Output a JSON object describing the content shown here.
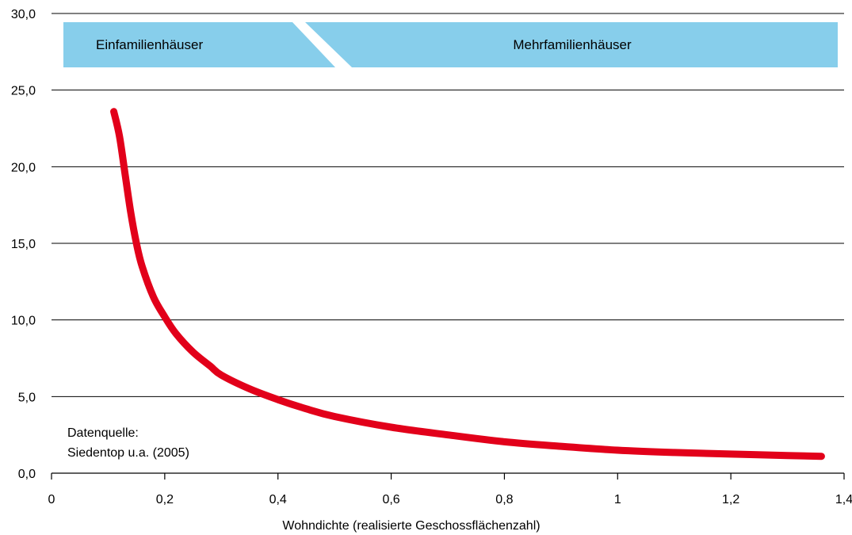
{
  "chart_data": {
    "type": "line",
    "title": "",
    "xlabel": "Wohndichte (realisierte Geschossflächenzahl)",
    "ylabel": "",
    "xlim": [
      0,
      1.4
    ],
    "ylim": [
      0,
      30
    ],
    "x_ticks": [
      0,
      0.2,
      0.4,
      0.6,
      0.8,
      1,
      1.2,
      1.4
    ],
    "x_tick_labels": [
      "0",
      "0,2",
      "0,4",
      "0,6",
      "0,8",
      "1",
      "1,2",
      "1,4"
    ],
    "y_ticks": [
      0,
      5,
      10,
      15,
      20,
      25,
      30
    ],
    "y_tick_labels": [
      "0,0",
      "5,0",
      "10,0",
      "15,0",
      "20,0",
      "25,0",
      "30,0"
    ],
    "grid": "horizontal",
    "series": [
      {
        "color": "#e2001a",
        "x": [
          0.11,
          0.12,
          0.13,
          0.14,
          0.15,
          0.16,
          0.18,
          0.2,
          0.22,
          0.25,
          0.28,
          0.3,
          0.35,
          0.4,
          0.45,
          0.5,
          0.6,
          0.7,
          0.8,
          0.9,
          1.0,
          1.1,
          1.2,
          1.3,
          1.36
        ],
        "y": [
          23.6,
          22.0,
          19.5,
          17.0,
          15.0,
          13.5,
          11.5,
          10.2,
          9.1,
          7.9,
          7.0,
          6.4,
          5.5,
          4.8,
          4.2,
          3.7,
          3.0,
          2.5,
          2.05,
          1.75,
          1.5,
          1.35,
          1.25,
          1.15,
          1.1
        ]
      }
    ],
    "bands": [
      {
        "label": "Einfamilienhäuser",
        "color": "#87ceeb"
      },
      {
        "label": "Mehrfamilienhäuser",
        "color": "#87ceeb"
      }
    ],
    "annotation": [
      "Datenquelle:",
      "Siedentop u.a. (2005)"
    ]
  }
}
